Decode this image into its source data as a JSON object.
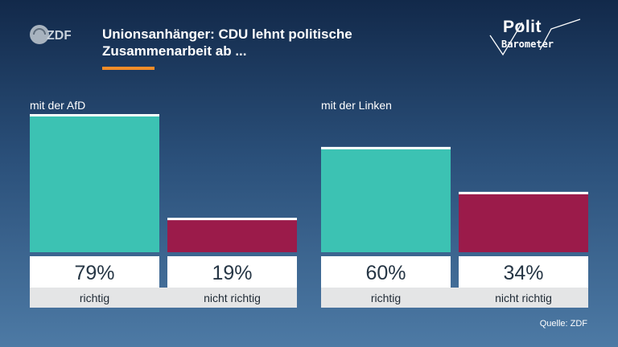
{
  "logo": {
    "zdf_text": "ZDF",
    "brand_top": "Polit",
    "brand_bottom": "Barometer"
  },
  "title": "Unionsanhänger: CDU lehnt politische Zusammenarbeit ab ...",
  "source": "Quelle: ZDF",
  "colors": {
    "richtig": "#3cc2b3",
    "nicht_richtig": "#9b1b4a",
    "accent": "#f28c28"
  },
  "chart_data": [
    {
      "type": "bar",
      "group_label": "mit der AfD",
      "categories": [
        "richtig",
        "nicht richtig"
      ],
      "values": [
        79,
        19
      ],
      "value_labels": [
        "79%",
        "19%"
      ],
      "unit": "%",
      "ylim": [
        0,
        79
      ],
      "grid": false
    },
    {
      "type": "bar",
      "group_label": "mit der Linken",
      "categories": [
        "richtig",
        "nicht richtig"
      ],
      "values": [
        60,
        34
      ],
      "value_labels": [
        "60%",
        "34%"
      ],
      "unit": "%",
      "ylim": [
        0,
        79
      ],
      "grid": false
    }
  ]
}
